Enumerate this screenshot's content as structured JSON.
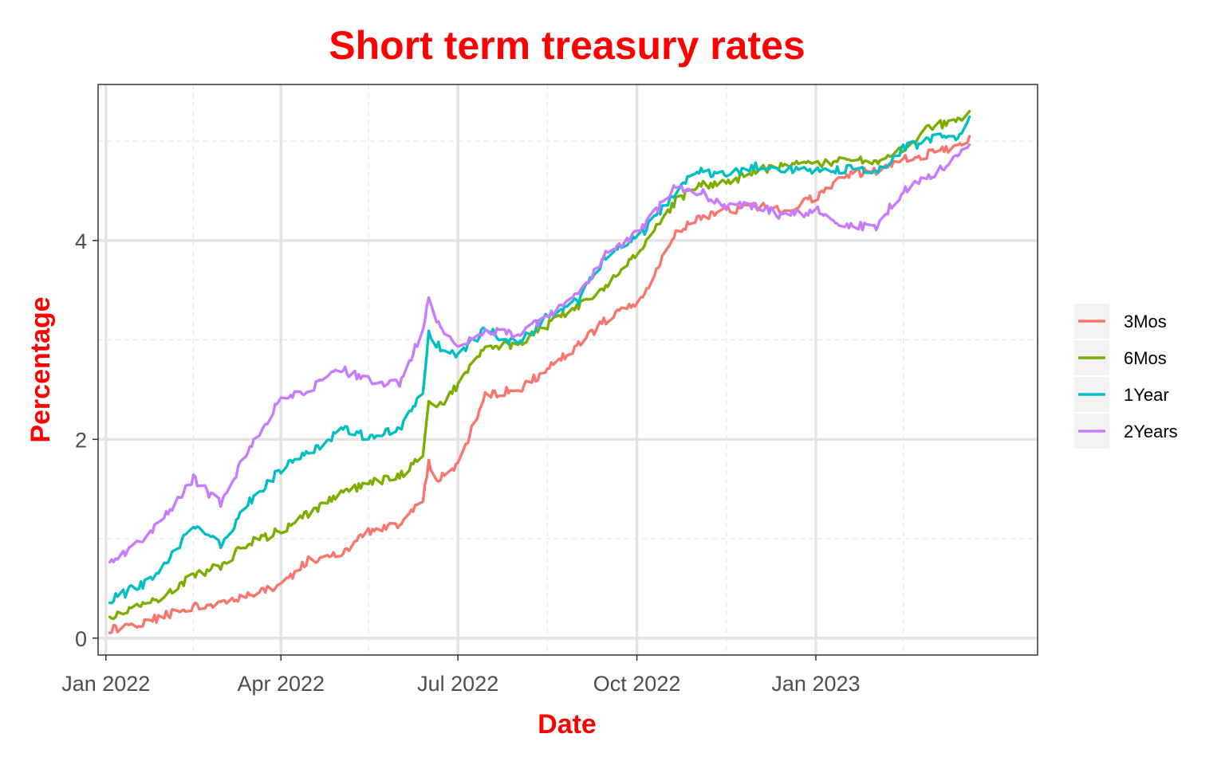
{
  "chart_data": {
    "type": "line",
    "title": "Short term treasury rates",
    "xlabel": "Date",
    "ylabel": "Percentage",
    "x_axis_type": "date",
    "xlim": [
      "2021-12-28",
      "2023-04-25"
    ],
    "ylim": [
      -0.17,
      5.57
    ],
    "x_ticks": [
      {
        "date": "2022-01-01",
        "label": "Jan 2022"
      },
      {
        "date": "2022-04-01",
        "label": "Apr 2022"
      },
      {
        "date": "2022-07-01",
        "label": "Jul 2022"
      },
      {
        "date": "2022-10-01",
        "label": "Oct 2022"
      },
      {
        "date": "2023-01-01",
        "label": "Jan 2023"
      }
    ],
    "x_minor_ticks": [
      "2022-02-15",
      "2022-05-16",
      "2022-08-16",
      "2022-11-16",
      "2023-02-15"
    ],
    "y_ticks": [
      0,
      2,
      4
    ],
    "y_minor_ticks": [
      1,
      3,
      5
    ],
    "grid": true,
    "legend_position": "right",
    "series": [
      {
        "name": "3Mos",
        "color": "#F8766D",
        "points": [
          [
            "2022-01-03",
            0.08
          ],
          [
            "2022-01-24",
            0.18
          ],
          [
            "2022-02-15",
            0.32
          ],
          [
            "2022-03-01",
            0.35
          ],
          [
            "2022-03-15",
            0.45
          ],
          [
            "2022-04-01",
            0.53
          ],
          [
            "2022-04-15",
            0.78
          ],
          [
            "2022-05-02",
            0.86
          ],
          [
            "2022-05-16",
            1.06
          ],
          [
            "2022-06-01",
            1.15
          ],
          [
            "2022-06-13",
            1.4
          ],
          [
            "2022-06-16",
            1.75
          ],
          [
            "2022-06-20",
            1.6
          ],
          [
            "2022-07-01",
            1.75
          ],
          [
            "2022-07-15",
            2.45
          ],
          [
            "2022-08-01",
            2.5
          ],
          [
            "2022-08-16",
            2.7
          ],
          [
            "2022-09-01",
            2.95
          ],
          [
            "2022-09-15",
            3.2
          ],
          [
            "2022-10-03",
            3.4
          ],
          [
            "2022-10-21",
            4.08
          ],
          [
            "2022-11-01",
            4.22
          ],
          [
            "2022-11-16",
            4.3
          ],
          [
            "2022-12-01",
            4.35
          ],
          [
            "2022-12-15",
            4.3
          ],
          [
            "2023-01-03",
            4.45
          ],
          [
            "2023-01-16",
            4.67
          ],
          [
            "2023-02-01",
            4.7
          ],
          [
            "2023-02-15",
            4.81
          ],
          [
            "2023-03-01",
            4.88
          ],
          [
            "2023-03-15",
            4.96
          ],
          [
            "2023-03-21",
            5.02
          ]
        ]
      },
      {
        "name": "6Mos",
        "color": "#7CAE00",
        "points": [
          [
            "2022-01-03",
            0.22
          ],
          [
            "2022-01-24",
            0.36
          ],
          [
            "2022-02-15",
            0.62
          ],
          [
            "2022-03-01",
            0.73
          ],
          [
            "2022-03-15",
            0.95
          ],
          [
            "2022-04-01",
            1.08
          ],
          [
            "2022-04-15",
            1.25
          ],
          [
            "2022-05-02",
            1.45
          ],
          [
            "2022-05-16",
            1.55
          ],
          [
            "2022-06-01",
            1.63
          ],
          [
            "2022-06-13",
            1.85
          ],
          [
            "2022-06-16",
            2.4
          ],
          [
            "2022-06-20",
            2.3
          ],
          [
            "2022-07-01",
            2.55
          ],
          [
            "2022-07-15",
            2.95
          ],
          [
            "2022-08-01",
            2.95
          ],
          [
            "2022-08-16",
            3.15
          ],
          [
            "2022-09-01",
            3.33
          ],
          [
            "2022-09-15",
            3.55
          ],
          [
            "2022-10-03",
            3.9
          ],
          [
            "2022-10-21",
            4.4
          ],
          [
            "2022-11-01",
            4.55
          ],
          [
            "2022-11-16",
            4.58
          ],
          [
            "2022-12-01",
            4.7
          ],
          [
            "2022-12-15",
            4.75
          ],
          [
            "2023-01-03",
            4.78
          ],
          [
            "2023-01-16",
            4.8
          ],
          [
            "2023-02-01",
            4.8
          ],
          [
            "2023-02-15",
            4.92
          ],
          [
            "2023-03-01",
            5.15
          ],
          [
            "2023-03-15",
            5.2
          ],
          [
            "2023-03-21",
            5.32
          ]
        ]
      },
      {
        "name": "1Year",
        "color": "#00BFC4",
        "points": [
          [
            "2022-01-03",
            0.38
          ],
          [
            "2022-01-24",
            0.58
          ],
          [
            "2022-02-15",
            1.12
          ],
          [
            "2022-03-01",
            0.93
          ],
          [
            "2022-03-15",
            1.35
          ],
          [
            "2022-04-01",
            1.7
          ],
          [
            "2022-04-15",
            1.85
          ],
          [
            "2022-05-02",
            2.1
          ],
          [
            "2022-05-16",
            2.02
          ],
          [
            "2022-06-01",
            2.1
          ],
          [
            "2022-06-13",
            2.5
          ],
          [
            "2022-06-16",
            3.1
          ],
          [
            "2022-06-20",
            2.95
          ],
          [
            "2022-07-01",
            2.85
          ],
          [
            "2022-07-15",
            3.1
          ],
          [
            "2022-08-01",
            2.95
          ],
          [
            "2022-08-16",
            3.25
          ],
          [
            "2022-09-01",
            3.4
          ],
          [
            "2022-09-15",
            3.85
          ],
          [
            "2022-10-03",
            4.05
          ],
          [
            "2022-10-21",
            4.5
          ],
          [
            "2022-11-01",
            4.7
          ],
          [
            "2022-11-16",
            4.65
          ],
          [
            "2022-12-01",
            4.75
          ],
          [
            "2022-12-15",
            4.7
          ],
          [
            "2023-01-03",
            4.72
          ],
          [
            "2023-01-16",
            4.72
          ],
          [
            "2023-02-01",
            4.68
          ],
          [
            "2023-02-15",
            4.92
          ],
          [
            "2023-03-01",
            5.02
          ],
          [
            "2023-03-15",
            5.05
          ],
          [
            "2023-03-21",
            5.25
          ]
        ]
      },
      {
        "name": "2Years",
        "color": "#C77CFF",
        "points": [
          [
            "2022-01-03",
            0.76
          ],
          [
            "2022-01-24",
            1.05
          ],
          [
            "2022-02-15",
            1.6
          ],
          [
            "2022-03-01",
            1.35
          ],
          [
            "2022-03-15",
            1.9
          ],
          [
            "2022-04-01",
            2.4
          ],
          [
            "2022-04-15",
            2.5
          ],
          [
            "2022-05-02",
            2.7
          ],
          [
            "2022-05-16",
            2.6
          ],
          [
            "2022-06-01",
            2.55
          ],
          [
            "2022-06-13",
            3.1
          ],
          [
            "2022-06-16",
            3.43
          ],
          [
            "2022-06-20",
            3.2
          ],
          [
            "2022-07-01",
            2.9
          ],
          [
            "2022-07-15",
            3.1
          ],
          [
            "2022-08-01",
            3.05
          ],
          [
            "2022-08-16",
            3.25
          ],
          [
            "2022-09-01",
            3.45
          ],
          [
            "2022-09-15",
            3.85
          ],
          [
            "2022-10-03",
            4.1
          ],
          [
            "2022-10-21",
            4.55
          ],
          [
            "2022-11-01",
            4.5
          ],
          [
            "2022-11-16",
            4.35
          ],
          [
            "2022-12-01",
            4.35
          ],
          [
            "2022-12-15",
            4.25
          ],
          [
            "2023-01-03",
            4.3
          ],
          [
            "2023-01-16",
            4.15
          ],
          [
            "2023-02-01",
            4.15
          ],
          [
            "2023-02-15",
            4.5
          ],
          [
            "2023-03-01",
            4.65
          ],
          [
            "2023-03-15",
            4.85
          ],
          [
            "2023-03-21",
            4.95
          ]
        ]
      }
    ]
  }
}
